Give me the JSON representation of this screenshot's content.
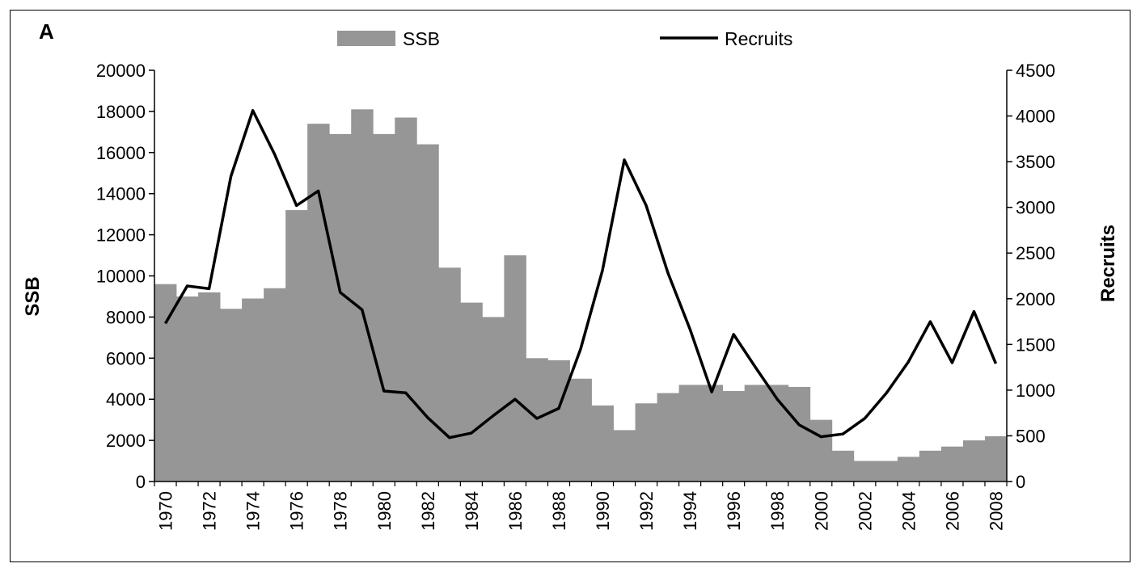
{
  "chart_data": {
    "type": "bar",
    "panel_label": "A",
    "x": [
      1970,
      1971,
      1972,
      1973,
      1974,
      1975,
      1976,
      1977,
      1978,
      1979,
      1980,
      1981,
      1982,
      1983,
      1984,
      1985,
      1986,
      1987,
      1988,
      1989,
      1990,
      1991,
      1992,
      1993,
      1994,
      1995,
      1996,
      1997,
      1998,
      1999,
      2000,
      2001,
      2002,
      2003,
      2004,
      2005,
      2006,
      2007,
      2008
    ],
    "x_tick_labels": [
      "1970",
      "1972",
      "1974",
      "1976",
      "1978",
      "1980",
      "1982",
      "1984",
      "1986",
      "1988",
      "1990",
      "1992",
      "1994",
      "1996",
      "1998",
      "2000",
      "2002",
      "2004",
      "2006",
      "2008"
    ],
    "series": [
      {
        "name": "SSB",
        "type": "bar",
        "axis": "left",
        "color": "#969696",
        "values": [
          9600,
          9000,
          9200,
          8400,
          8900,
          9400,
          13200,
          17400,
          16900,
          18100,
          16900,
          17700,
          16400,
          10400,
          8700,
          8000,
          11000,
          6000,
          5900,
          5000,
          3700,
          2500,
          3800,
          4300,
          4700,
          4700,
          4400,
          4700,
          4700,
          4600,
          3000,
          1500,
          1000,
          1000,
          1200,
          1500,
          1700,
          2000,
          2200
        ]
      },
      {
        "name": "Recruits",
        "type": "line",
        "axis": "right",
        "color": "#000000",
        "values": [
          1730,
          2140,
          2110,
          3340,
          4060,
          3580,
          3020,
          3180,
          2070,
          1880,
          990,
          970,
          700,
          480,
          530,
          720,
          900,
          690,
          800,
          1450,
          2310,
          3520,
          3020,
          2280,
          1670,
          980,
          1610,
          1250,
          900,
          620,
          490,
          520,
          690,
          970,
          1310,
          1750,
          1300,
          1860,
          1290
        ]
      }
    ],
    "ylabel": "SSB",
    "y2label": "Recruits",
    "ylim": [
      0,
      20000
    ],
    "y2lim": [
      0,
      4500
    ],
    "y_ticks": [
      "0",
      "2000",
      "4000",
      "6000",
      "8000",
      "10000",
      "12000",
      "14000",
      "16000",
      "18000",
      "20000"
    ],
    "y2_ticks": [
      "0",
      "500",
      "1000",
      "1500",
      "2000",
      "2500",
      "3000",
      "3500",
      "4000",
      "4500"
    ],
    "grid": false,
    "legend": "top-center"
  }
}
